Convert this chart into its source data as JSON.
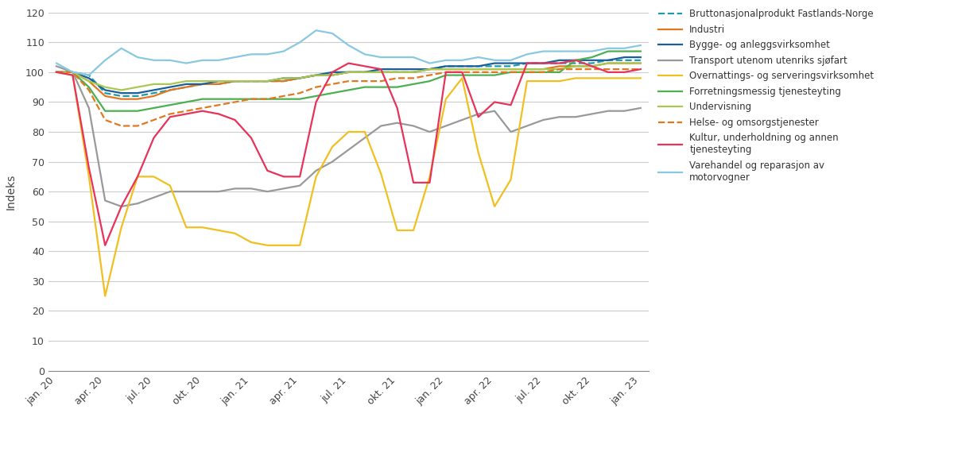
{
  "ylabel": "Indeks",
  "ylim": [
    0,
    120
  ],
  "yticks": [
    0,
    10,
    20,
    30,
    40,
    50,
    60,
    70,
    80,
    90,
    100,
    110,
    120
  ],
  "xtick_labels": [
    "jan. 20",
    "apr. 20",
    "jul. 20",
    "okt. 20",
    "jan. 21",
    "apr. 21",
    "jul. 21",
    "okt. 21",
    "jan. 22",
    "apr. 22",
    "jul. 22",
    "okt. 22",
    "jan. 23"
  ],
  "xtick_positions": [
    0,
    3,
    6,
    9,
    12,
    15,
    18,
    21,
    24,
    27,
    30,
    33,
    36
  ],
  "series": {
    "bnp_fastland": {
      "label": "Bruttonasjonalprodukt Fastlands-Norge",
      "color": "#1e9aaa",
      "linestyle": "dashed",
      "linewidth": 1.6,
      "values": [
        100,
        100,
        99,
        93,
        92,
        92,
        93,
        94,
        95,
        96,
        96,
        97,
        97,
        97,
        97,
        98,
        99,
        99,
        100,
        100,
        100,
        100,
        100,
        101,
        102,
        102,
        102,
        102,
        102,
        103,
        103,
        103,
        103,
        103,
        104,
        104,
        104
      ]
    },
    "industri": {
      "label": "Industri",
      "color": "#e07820",
      "linestyle": "solid",
      "linewidth": 1.6,
      "values": [
        100,
        100,
        97,
        92,
        91,
        91,
        92,
        94,
        95,
        96,
        96,
        97,
        97,
        97,
        97,
        98,
        99,
        99,
        100,
        100,
        100,
        100,
        100,
        101,
        101,
        101,
        101,
        101,
        101,
        101,
        101,
        102,
        102,
        102,
        103,
        103,
        103
      ]
    },
    "bygge_anlegg": {
      "label": "Bygge- og anleggsvirksomhet",
      "color": "#1a5f9a",
      "linestyle": "solid",
      "linewidth": 1.6,
      "values": [
        100,
        100,
        98,
        94,
        93,
        93,
        94,
        95,
        96,
        96,
        97,
        97,
        97,
        97,
        98,
        98,
        99,
        100,
        100,
        100,
        101,
        101,
        101,
        101,
        102,
        102,
        102,
        103,
        103,
        103,
        103,
        104,
        104,
        104,
        104,
        105,
        105
      ]
    },
    "transport": {
      "label": "Transport utenom utenriks sjøfart",
      "color": "#999999",
      "linestyle": "solid",
      "linewidth": 1.6,
      "values": [
        102,
        100,
        88,
        57,
        55,
        56,
        58,
        60,
        60,
        60,
        60,
        61,
        61,
        60,
        61,
        62,
        67,
        70,
        74,
        78,
        82,
        83,
        82,
        80,
        82,
        84,
        86,
        87,
        80,
        82,
        84,
        85,
        85,
        86,
        87,
        87,
        88
      ]
    },
    "overnattings": {
      "label": "Overnattings- og serveringsvirksomhet",
      "color": "#f0c020",
      "linestyle": "solid",
      "linewidth": 1.6,
      "values": [
        100,
        99,
        65,
        25,
        48,
        65,
        65,
        62,
        48,
        48,
        47,
        46,
        43,
        42,
        42,
        42,
        65,
        75,
        80,
        80,
        66,
        47,
        47,
        65,
        91,
        98,
        73,
        55,
        64,
        97,
        97,
        97,
        98,
        98,
        98,
        98,
        98
      ]
    },
    "forretningsmessig": {
      "label": "Forretningsmessig tjenesteyting",
      "color": "#4caf50",
      "linestyle": "solid",
      "linewidth": 1.6,
      "values": [
        100,
        100,
        95,
        87,
        87,
        87,
        88,
        89,
        90,
        91,
        91,
        91,
        91,
        91,
        91,
        91,
        92,
        93,
        94,
        95,
        95,
        95,
        96,
        97,
        99,
        99,
        99,
        99,
        100,
        100,
        100,
        100,
        104,
        105,
        107,
        107,
        107
      ]
    },
    "undervisning": {
      "label": "Undervisning",
      "color": "#a8c850",
      "linestyle": "solid",
      "linewidth": 1.6,
      "values": [
        100,
        100,
        97,
        95,
        94,
        95,
        96,
        96,
        97,
        97,
        97,
        97,
        97,
        97,
        98,
        98,
        99,
        99,
        100,
        100,
        100,
        100,
        100,
        101,
        101,
        101,
        101,
        101,
        101,
        101,
        101,
        101,
        102,
        102,
        103,
        103,
        103
      ]
    },
    "helse": {
      "label": "Helse- og omsorgstjenester",
      "color": "#e07820",
      "linestyle": "dashed",
      "linewidth": 1.6,
      "values": [
        100,
        100,
        94,
        84,
        82,
        82,
        84,
        86,
        87,
        88,
        89,
        90,
        91,
        91,
        92,
        93,
        95,
        96,
        97,
        97,
        97,
        98,
        98,
        99,
        100,
        100,
        100,
        100,
        100,
        100,
        100,
        101,
        101,
        101,
        101,
        101,
        101
      ]
    },
    "kultur": {
      "label": "Kultur, underholdning og annen\ntjenesteyting",
      "color": "#e8325a",
      "linestyle": "solid",
      "linewidth": 1.6,
      "values": [
        100,
        99,
        68,
        42,
        55,
        65,
        78,
        85,
        86,
        87,
        86,
        84,
        78,
        67,
        65,
        65,
        90,
        100,
        103,
        102,
        101,
        88,
        63,
        63,
        100,
        100,
        85,
        90,
        89,
        103,
        103,
        103,
        104,
        102,
        100,
        100,
        101
      ]
    },
    "varehandel": {
      "label": "Varehandel og reparasjon av\nmotorvogner",
      "color": "#88c8e0",
      "linestyle": "solid",
      "linewidth": 1.6,
      "values": [
        103,
        100,
        99,
        104,
        108,
        105,
        104,
        104,
        103,
        104,
        104,
        105,
        106,
        106,
        107,
        110,
        114,
        113,
        109,
        106,
        105,
        105,
        105,
        103,
        104,
        104,
        105,
        104,
        104,
        106,
        107,
        107,
        107,
        107,
        108,
        108,
        109
      ]
    }
  }
}
